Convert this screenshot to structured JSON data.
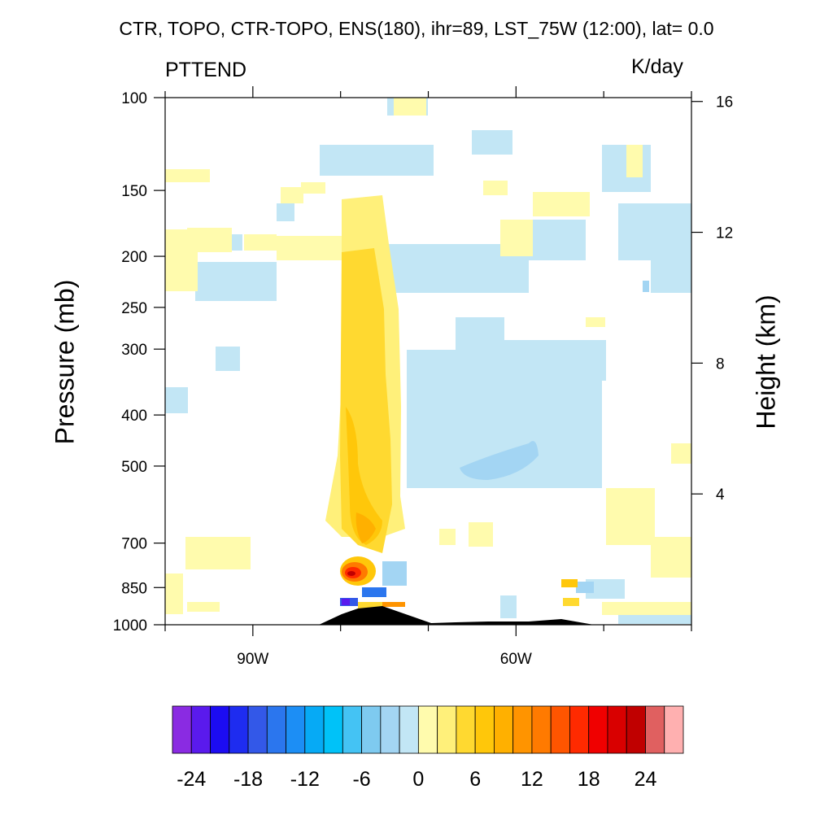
{
  "chart_data": {
    "type": "heatmap",
    "title": "CTR, TOPO, CTR-TOPO, ENS(180), ihr=89, LST_75W (12:00), lat=  0.0",
    "variable": "PTTEND",
    "units": "K/day",
    "ylabel": "Pressure (mb)",
    "y2label": "Height (km)",
    "x_axis": {
      "ticks": [
        -90,
        -60
      ],
      "tick_labels": [
        "90W",
        "60W"
      ],
      "range": [
        -100,
        -40
      ]
    },
    "y_axis": {
      "scale": "log",
      "range": [
        1000,
        100
      ],
      "ticks": [
        100,
        150,
        200,
        250,
        300,
        400,
        500,
        700,
        850,
        1000
      ],
      "tick_labels": [
        "100",
        "150",
        "200",
        "250",
        "300",
        "400",
        "500",
        "700",
        "850",
        "1000"
      ]
    },
    "y2_axis": {
      "ticks": [
        16,
        12,
        8,
        4
      ],
      "tick_labels": [
        "16",
        "12",
        "8",
        "4"
      ]
    },
    "colorbar": {
      "colors": [
        "#8a2be2",
        "#5a1aed",
        "#1c0cf2",
        "#1e2cf0",
        "#3358e8",
        "#2b76ee",
        "#1c8ef5",
        "#06aaf5",
        "#00c2f8",
        "#44c3f4",
        "#7ecaf0",
        "#a3d5f3",
        "#c2e6f5",
        "#fffbad",
        "#fff07a",
        "#ffd930",
        "#ffc70a",
        "#ffb000",
        "#ff9400",
        "#ff7a00",
        "#ff5500",
        "#ff2a00",
        "#f00000",
        "#d90000",
        "#c00000",
        "#e06060",
        "#ffb0b0"
      ],
      "tick_values": [
        -24,
        -18,
        -12,
        -6,
        0,
        6,
        12,
        18,
        24
      ],
      "tick_labels": [
        "-24",
        "-18",
        "-12",
        "-6",
        "0",
        "6",
        "12",
        "18",
        "24"
      ]
    },
    "grid": false
  }
}
